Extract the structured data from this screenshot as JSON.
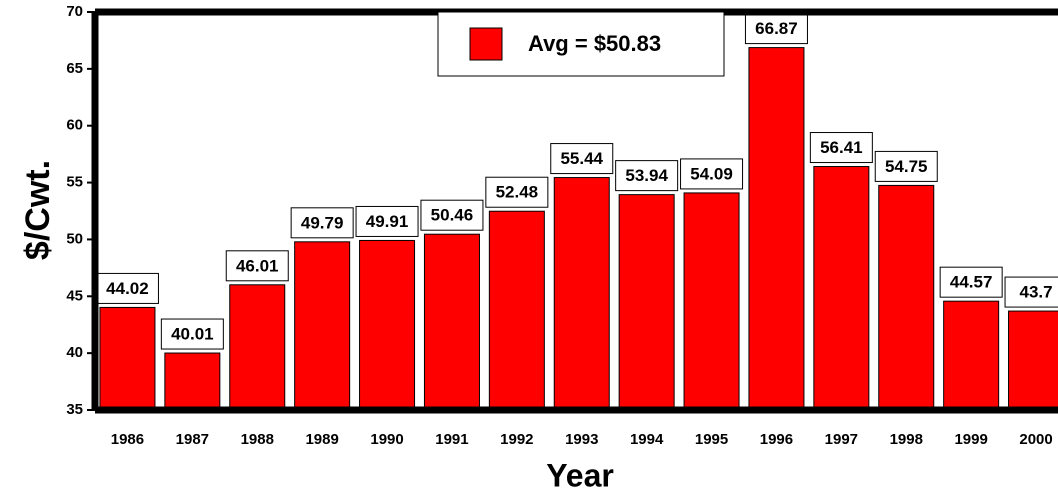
{
  "chart_data": {
    "type": "bar",
    "y_label": "$/Cwt.",
    "x_label": "Year",
    "categories": [
      "1986",
      "1987",
      "1988",
      "1989",
      "1990",
      "1991",
      "1992",
      "1993",
      "1994",
      "1995",
      "1996",
      "1997",
      "1998",
      "1999",
      "2000"
    ],
    "series": [
      {
        "name": "Avg = $50.83",
        "color": "#ff0000",
        "values": [
          44.02,
          40.01,
          46.01,
          49.79,
          49.91,
          50.46,
          52.48,
          55.44,
          53.94,
          54.09,
          66.87,
          56.41,
          54.75,
          44.57,
          43.7
        ]
      }
    ],
    "ylim": [
      35,
      70
    ],
    "yticks": [
      35,
      40,
      45,
      50,
      55,
      60,
      65,
      70
    ],
    "legend": "top"
  }
}
